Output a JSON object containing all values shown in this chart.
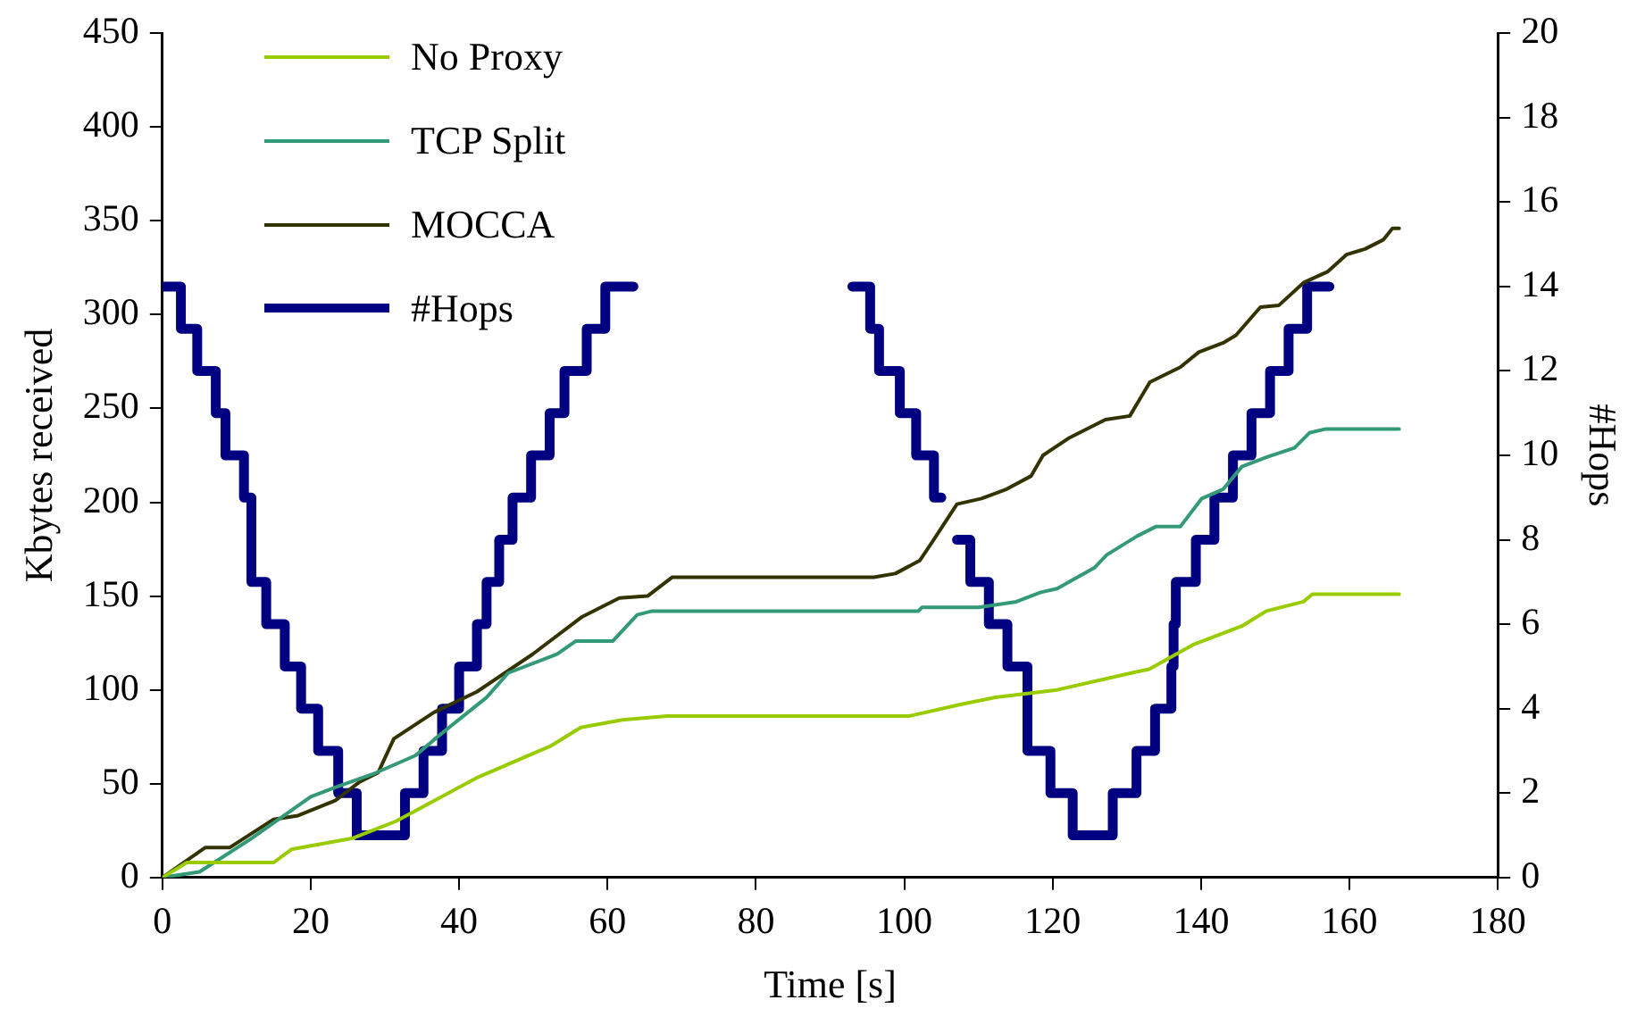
{
  "chart_data": {
    "type": "line",
    "xlabel": "Time [s]",
    "ylabel": "Kbytes received",
    "y2label": "#Hops",
    "xlim": [
      0,
      180
    ],
    "xticks": [
      0,
      20,
      40,
      60,
      80,
      100,
      120,
      140,
      160,
      180
    ],
    "ylim": [
      0,
      450
    ],
    "yticks": [
      0,
      50,
      100,
      150,
      200,
      250,
      300,
      350,
      400,
      450
    ],
    "y2lim": [
      0,
      20
    ],
    "y2ticks": [
      0,
      2,
      4,
      6,
      8,
      10,
      12,
      14,
      16,
      18,
      20
    ],
    "grid": false,
    "legend": "top left",
    "marker": "none",
    "line_style": "solid",
    "series": [
      {
        "name": "No Proxy",
        "color": "#99cc00",
        "x": [
          0,
          3.3,
          15,
          17.4,
          25.7,
          31.5,
          42.3,
          52.3,
          56.4,
          62,
          68,
          100.6,
          107.3,
          112.3,
          120.6,
          130.6,
          133,
          138.9,
          145.5,
          148.8,
          153.8,
          155,
          166.7
        ],
        "values": [
          0,
          8,
          8,
          15,
          21,
          30,
          53,
          70,
          80,
          84,
          86,
          86,
          92,
          96,
          100,
          109,
          111,
          124,
          134,
          142,
          147,
          151,
          151
        ]
      },
      {
        "name": "TCP Split",
        "color": "#339977",
        "x": [
          0,
          5,
          11.7,
          20,
          23.3,
          28.3,
          34.1,
          37.4,
          43.7,
          46.6,
          53.2,
          55.7,
          60.7,
          64,
          66,
          101.9,
          102.4,
          110,
          115.1,
          118.4,
          120.6,
          125.6,
          127.3,
          131.4,
          133.9,
          137.2,
          140.1,
          143,
          145.5,
          148.8,
          152.6,
          154.6,
          156.7,
          166.7
        ],
        "values": [
          0,
          3,
          20,
          43,
          48,
          55,
          65,
          76,
          96,
          109,
          119,
          126,
          126,
          140,
          142,
          142,
          144,
          144,
          147,
          152,
          154,
          165,
          172,
          182,
          187,
          187,
          202,
          207,
          219,
          224,
          229,
          237,
          239,
          239
        ]
      },
      {
        "name": "MOCCA",
        "color": "#333300",
        "x": [
          0,
          5.8,
          9.1,
          15,
          18.3,
          23.3,
          26.6,
          29.1,
          31.2,
          36.6,
          42.4,
          49.9,
          56.6,
          61.6,
          65.4,
          68.7,
          95.9,
          98.8,
          102.1,
          103.8,
          107.1,
          110.4,
          113.8,
          117.1,
          118.7,
          122.1,
          127.1,
          130.4,
          133.1,
          137.2,
          139.7,
          143,
          144.7,
          148,
          150.5,
          153.8,
          157.1,
          159.6,
          162.1,
          164.6,
          165.8,
          166.7
        ],
        "values": [
          0,
          16,
          16,
          31,
          33,
          41,
          51,
          56,
          74,
          88,
          99,
          119,
          139,
          149,
          150,
          160,
          160,
          162,
          169,
          179,
          199,
          202,
          207,
          214,
          225,
          234,
          244,
          246,
          264,
          272,
          280,
          285,
          289,
          304,
          305,
          317,
          323,
          332,
          335,
          340,
          346,
          346
        ]
      },
      {
        "name": "#Hops",
        "color": "#000080",
        "type": "step",
        "axis": "y2",
        "x": [
          0,
          2.5,
          4.7,
          7.2,
          8.5,
          11,
          12,
          14,
          16.5,
          18.7,
          21,
          23.7,
          26.2,
          32.7,
          35.2,
          37.7,
          40,
          42.4,
          43.7,
          45.4,
          47.2,
          49.7,
          52.2,
          54.2,
          57.2,
          59.7,
          63.5,
          64,
          93,
          95.4,
          96.6,
          99.4,
          101.6,
          104,
          105,
          106,
          107.1,
          108.9,
          111.4,
          113.9,
          116.6,
          119.7,
          122.7,
          128.1,
          131.3,
          133.8,
          136,
          136.3,
          136.6,
          139.3,
          141.8,
          144.3,
          146.8,
          149.3,
          151.8,
          154.3,
          157.3
        ],
        "values": [
          14,
          13,
          12,
          11,
          10,
          9,
          7,
          6,
          5,
          4,
          3,
          2,
          1,
          2,
          3,
          4,
          5,
          6,
          7,
          8,
          9,
          10,
          11,
          12,
          13,
          14,
          14,
          null,
          14,
          13,
          12,
          11,
          10,
          9,
          9,
          null,
          8,
          7,
          6,
          5,
          3,
          2,
          1,
          2,
          3,
          4,
          5,
          6,
          7,
          8,
          9,
          10,
          11,
          12,
          13,
          14,
          14
        ]
      }
    ]
  }
}
